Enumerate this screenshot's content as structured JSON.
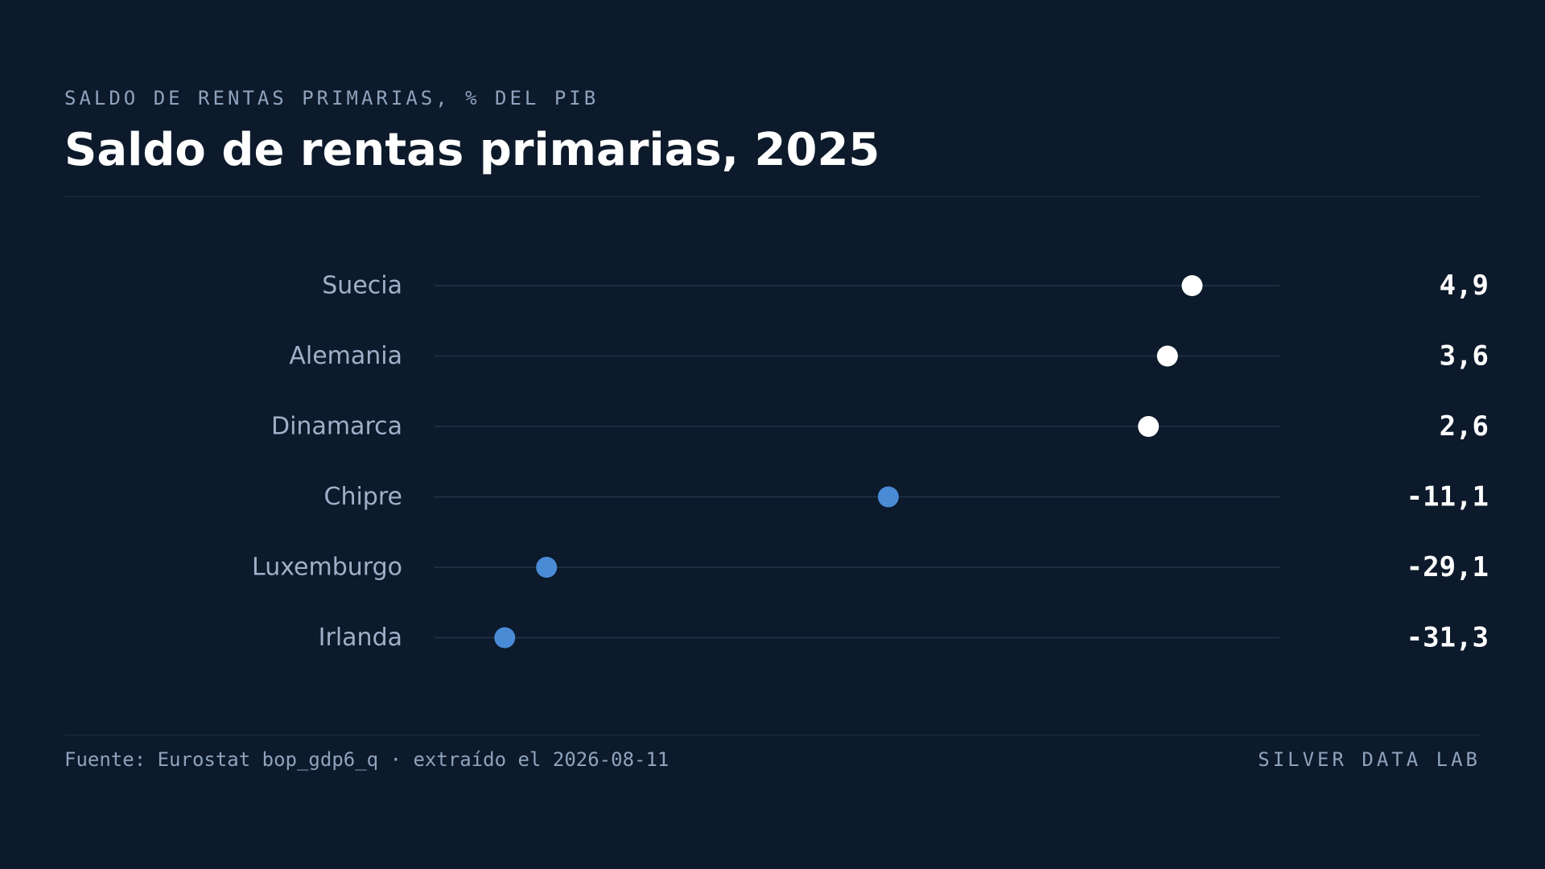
{
  "header": {
    "kicker": "SALDO DE RENTAS PRIMARIAS, % DEL PIB",
    "title": "Saldo de rentas primarias, 2025"
  },
  "footer": {
    "source": "Fuente: Eurostat bop_gdp6_q · extraído el 2026-08-11",
    "brand": "SILVER DATA LAB"
  },
  "colors": {
    "background": "#0c1a2b",
    "positive_dot": "#ffffff",
    "negative_dot": "#4a8bd6",
    "track": "#22344a",
    "label": "#9fb0c8",
    "value": "#ffffff"
  },
  "chart_data": {
    "type": "dot",
    "title": "Saldo de rentas primarias, 2025",
    "categories": [
      "Suecia",
      "Alemania",
      "Dinamarca",
      "Chipre",
      "Luxemburgo",
      "Irlanda"
    ],
    "values": [
      4.9,
      3.6,
      2.6,
      -11.1,
      -29.1,
      -31.3
    ],
    "value_labels": [
      "4,9",
      "3,6",
      "2,6",
      "-11,1",
      "-29,1",
      "-31,3"
    ],
    "xlim": [
      -35,
      9.5
    ],
    "grid": false,
    "legend": "none"
  }
}
